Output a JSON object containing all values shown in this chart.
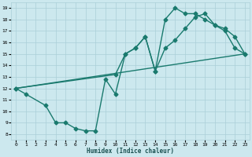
{
  "xlabel": "Humidex (Indice chaleur)",
  "bg_color": "#cce8ee",
  "grid_color": "#aacfd8",
  "line_color": "#1a7a6e",
  "xlim": [
    -0.5,
    23.5
  ],
  "ylim": [
    7.5,
    19.5
  ],
  "xticks": [
    0,
    1,
    2,
    3,
    4,
    5,
    6,
    7,
    8,
    9,
    10,
    11,
    12,
    13,
    14,
    15,
    16,
    17,
    18,
    19,
    20,
    21,
    22,
    23
  ],
  "yticks": [
    8,
    9,
    10,
    11,
    12,
    13,
    14,
    15,
    16,
    17,
    18,
    19
  ],
  "line1_x": [
    0,
    1,
    3,
    4,
    5,
    6,
    7,
    8,
    9,
    10,
    11,
    12,
    13,
    14,
    15,
    16,
    17,
    18,
    19,
    20,
    21,
    22,
    23
  ],
  "line1_y": [
    12,
    11.5,
    10.5,
    9.0,
    9.0,
    8.5,
    8.3,
    8.3,
    12.8,
    11.5,
    15.0,
    15.5,
    16.5,
    13.5,
    18.0,
    19.0,
    18.5,
    18.5,
    18.0,
    17.5,
    17.0,
    15.5,
    15.0
  ],
  "line2_x": [
    0,
    10,
    11,
    12,
    13,
    14,
    15,
    16,
    17,
    18,
    19,
    20,
    21,
    22,
    23
  ],
  "line2_y": [
    12,
    13.2,
    15.0,
    15.5,
    16.5,
    13.5,
    15.5,
    16.2,
    17.2,
    18.2,
    18.5,
    17.5,
    17.2,
    16.5,
    15.0
  ],
  "line3_x": [
    0,
    23
  ],
  "line3_y": [
    12.0,
    15.0
  ],
  "marker": "D",
  "markersize": 2.5,
  "linewidth": 1.0
}
